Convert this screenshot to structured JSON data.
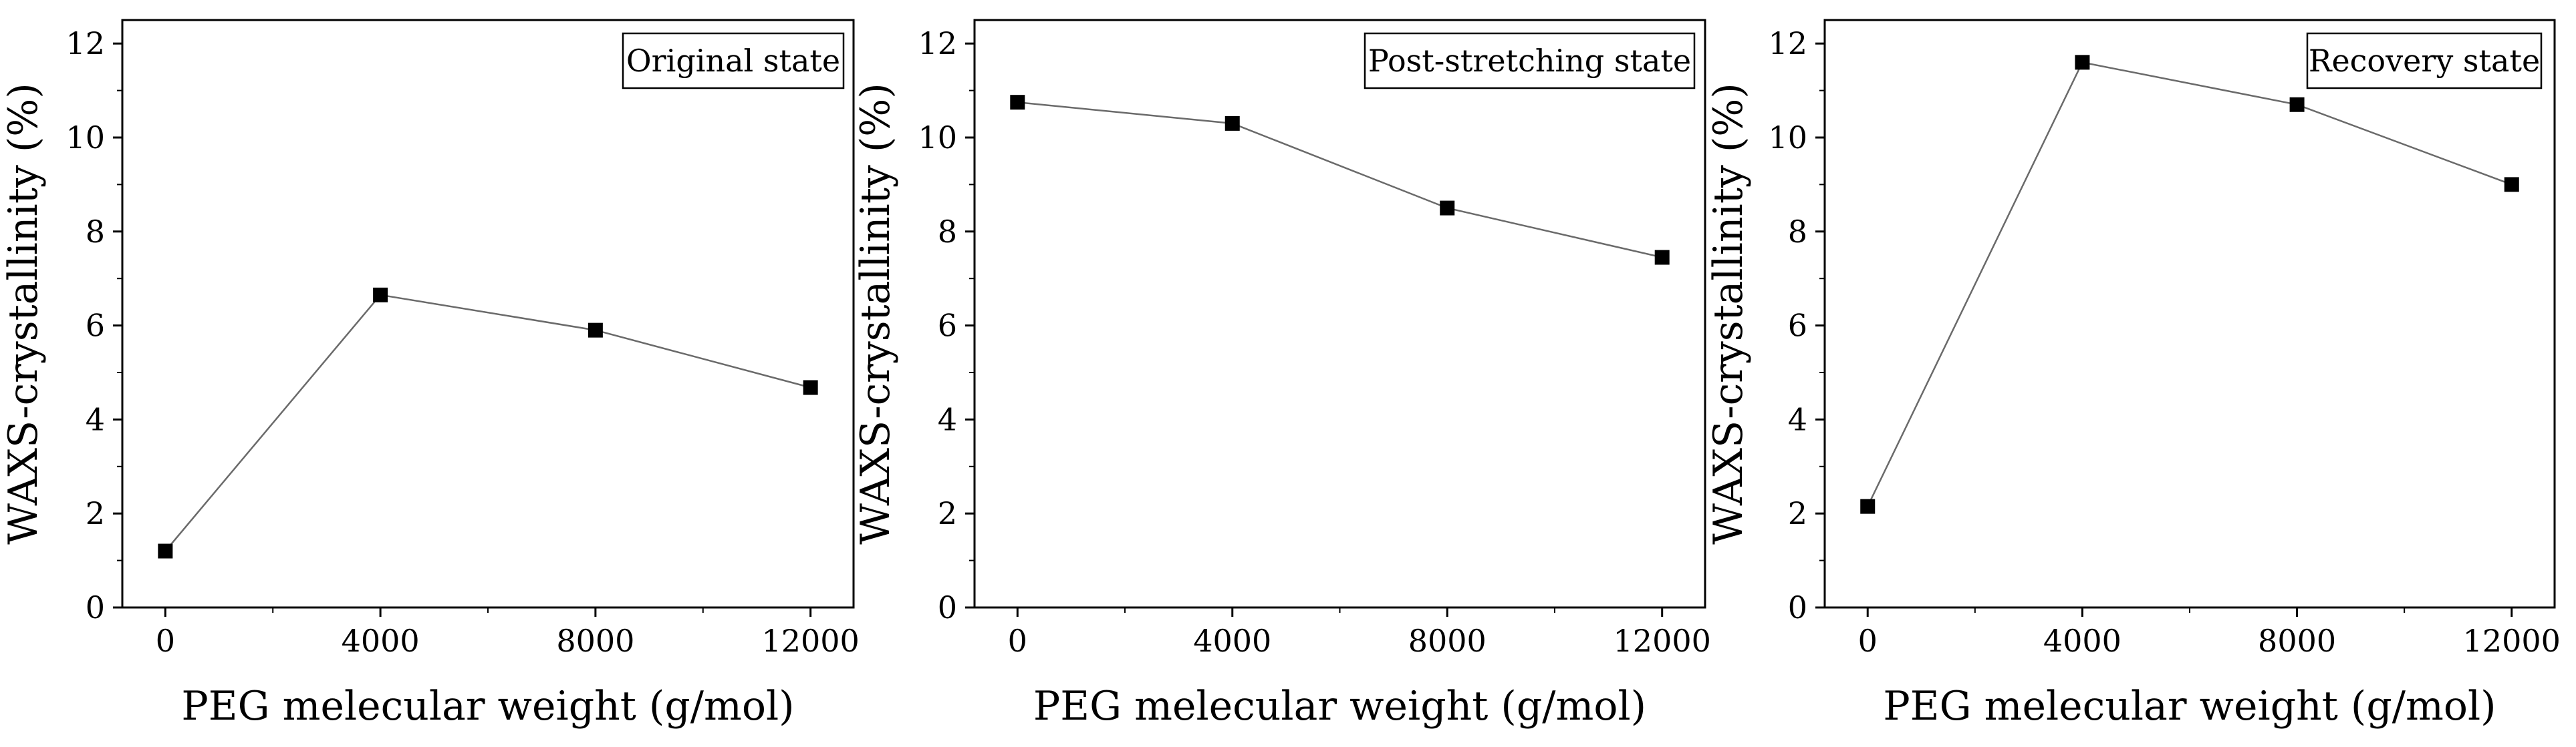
{
  "chart_data": [
    {
      "type": "line",
      "legend_label": "Original state",
      "legend_position": "top-right",
      "xlabel": "PEG melecular weight (g/mol)",
      "ylabel": "WAXS-crystallinity (%)",
      "xlim": [
        -800,
        12800
      ],
      "ylim": [
        0,
        12.5
      ],
      "xticks": [
        0,
        4000,
        8000,
        12000
      ],
      "yticks": [
        0,
        2,
        4,
        6,
        8,
        10,
        12
      ],
      "series": [
        {
          "name": "Original state",
          "x": [
            0,
            4000,
            8000,
            12000
          ],
          "y": [
            1.2,
            6.65,
            5.9,
            4.68
          ]
        }
      ]
    },
    {
      "type": "line",
      "legend_label": "Post-stretching state",
      "legend_position": "top-right",
      "xlabel": "PEG melecular weight (g/mol)",
      "ylabel": "WAXS-crystallinity (%)",
      "xlim": [
        -800,
        12800
      ],
      "ylim": [
        0,
        12.5
      ],
      "xticks": [
        0,
        4000,
        8000,
        12000
      ],
      "yticks": [
        0,
        2,
        4,
        6,
        8,
        10,
        12
      ],
      "series": [
        {
          "name": "Post-stretching state",
          "x": [
            0,
            4000,
            8000,
            12000
          ],
          "y": [
            10.75,
            10.3,
            8.5,
            7.45
          ]
        }
      ]
    },
    {
      "type": "line",
      "legend_label": "Recovery state",
      "legend_position": "top-right",
      "xlabel": "PEG melecular weight (g/mol)",
      "ylabel": "WAXS-crystallinity (%)",
      "xlim": [
        -800,
        12800
      ],
      "ylim": [
        0,
        12.5
      ],
      "xticks": [
        0,
        4000,
        8000,
        12000
      ],
      "yticks": [
        0,
        2,
        4,
        6,
        8,
        10,
        12
      ],
      "series": [
        {
          "name": "Recovery state",
          "x": [
            0,
            4000,
            8000,
            12000
          ],
          "y": [
            2.15,
            11.6,
            10.7,
            9.0
          ]
        }
      ]
    }
  ]
}
